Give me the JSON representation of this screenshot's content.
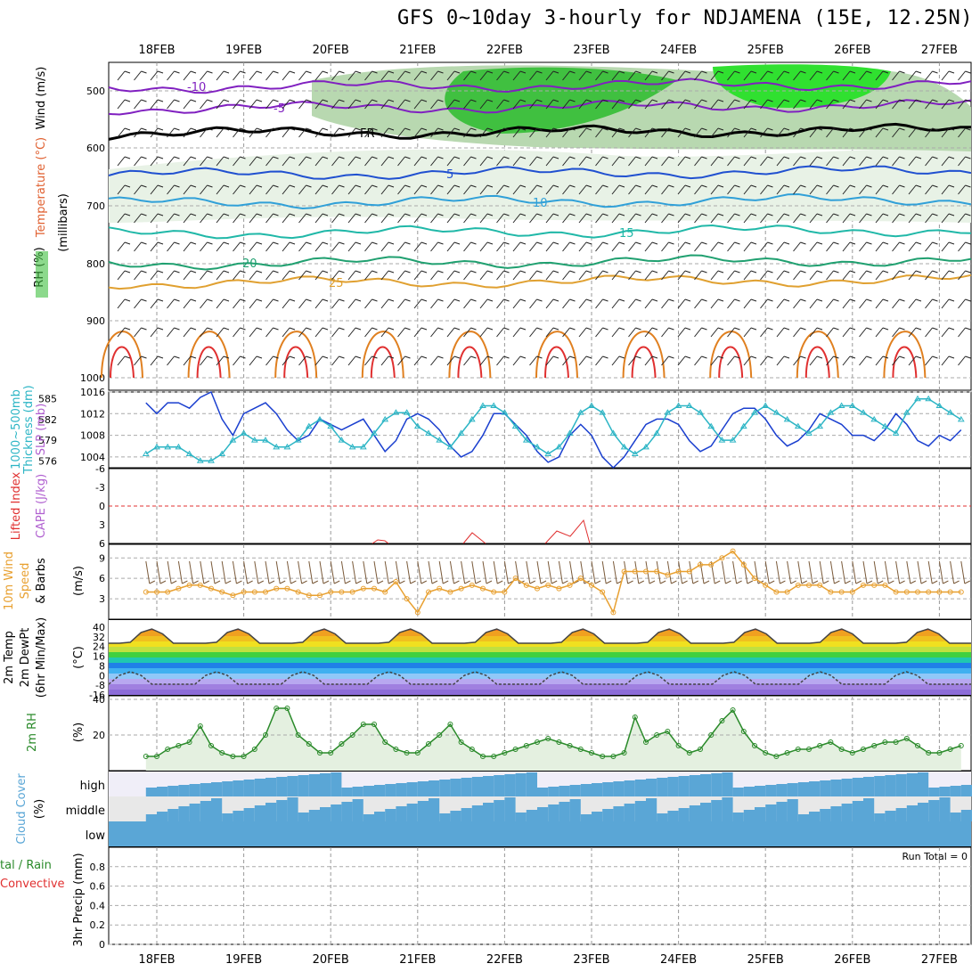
{
  "title": "GFS 0~10day 3-hourly for NDJAMENA (15E, 12.25N)",
  "dates": [
    "18FEB",
    "19FEB",
    "20FEB",
    "21FEB",
    "22FEB",
    "23FEB",
    "24FEB",
    "25FEB",
    "26FEB",
    "27FEB"
  ],
  "colors": {
    "slp": "#1a3fcf",
    "thickness": "#2cb5c5",
    "lifted": "#e03030",
    "cape": "#b060d0",
    "wind": "#e8a030",
    "barb": "#7a5a3a",
    "rh": "#2a8a2a",
    "cloud": "#5aa6d6",
    "cloud_bg": "#f0eef8",
    "cloud_mid_bg": "#e8e8e8",
    "temp_line": "#444444"
  },
  "panels": {
    "upper": {
      "ylabel_rh": "RH (%)",
      "ylabel_temp": "Temperature (°C)",
      "ylabel_wind": "Wind (m/s)",
      "ylabel_mb": "(millibars)",
      "yticks": [
        "500",
        "600",
        "700",
        "800",
        "900",
        "1000"
      ],
      "isotherm_labels": [
        "-10",
        "-5",
        "FR",
        "5",
        "10",
        "15",
        "20",
        "25"
      ]
    },
    "slp": {
      "ylabel_thick": "Thickness (dm)",
      "ylabel_thick_pre": "1000~500mb",
      "ylabel_slp": "SLP (mb)",
      "ticks_left": [
        "585",
        "582",
        "579",
        "576"
      ],
      "ticks_right": [
        "1016",
        "1012",
        "1008",
        "1004"
      ]
    },
    "cape": {
      "ylabel_li": "Lifted Index",
      "ylabel_cape": "CAPE (J/kg)",
      "ticks": [
        "-6",
        "-3",
        "0",
        "3",
        "6"
      ]
    },
    "wind": {
      "ylabel_a": "10m Wind",
      "ylabel_b": "Speed",
      "ylabel_c": "& Barbs",
      "unit": "(m/s)",
      "ticks": [
        "9",
        "6",
        "3"
      ]
    },
    "temp": {
      "ylabel_a": "2m Temp",
      "ylabel_b": "2m DewPt",
      "ylabel_c": "(6hr Min/Max)",
      "unit": "(°C)",
      "ticks": [
        "40",
        "32",
        "24",
        "16",
        "8",
        "0",
        "-8",
        "-16"
      ]
    },
    "rh": {
      "ylabel": "2m RH",
      "unit": "(%)",
      "ticks": [
        "40",
        "20"
      ]
    },
    "cloud": {
      "ylabel": "Cloud Cover",
      "unit": "(%)",
      "levels": [
        "high",
        "middle",
        "low"
      ]
    },
    "precip": {
      "ylabel_a": "tal / Rain",
      "ylabel_b": "Convective",
      "ylabel_c": "3hr Precip (mm)",
      "ticks": [
        "0.8",
        "0.6",
        "0.4",
        "0.2",
        "0"
      ],
      "run_total": "Run Total = 0"
    }
  },
  "chart_data": [
    {
      "type": "line",
      "name": "SLP (mb)",
      "x": [
        "17FEB21",
        "18FEB00",
        "18FEB03",
        "18FEB06",
        "18FEB09",
        "18FEB12",
        "18FEB15",
        "18FEB18",
        "18FEB21",
        "19FEB00",
        "19FEB03",
        "19FEB06",
        "19FEB09",
        "19FEB12",
        "19FEB15",
        "19FEB18",
        "19FEB21",
        "20FEB00",
        "20FEB03",
        "20FEB06",
        "20FEB09",
        "20FEB12",
        "20FEB15",
        "20FEB18",
        "20FEB21",
        "21FEB00",
        "21FEB03",
        "21FEB06",
        "21FEB09",
        "21FEB12",
        "21FEB15",
        "21FEB18",
        "21FEB21",
        "22FEB00",
        "22FEB03",
        "22FEB06",
        "22FEB09",
        "22FEB12",
        "22FEB15",
        "22FEB18",
        "22FEB21",
        "23FEB00",
        "23FEB03",
        "23FEB06",
        "23FEB09",
        "23FEB12",
        "23FEB15",
        "23FEB18",
        "23FEB21",
        "24FEB00",
        "24FEB03",
        "24FEB06",
        "24FEB09",
        "24FEB12",
        "24FEB15",
        "24FEB18",
        "24FEB21",
        "25FEB00",
        "25FEB03",
        "25FEB06",
        "25FEB09",
        "25FEB12",
        "25FEB15",
        "25FEB18",
        "25FEB21",
        "26FEB00",
        "26FEB03",
        "26FEB06",
        "26FEB09",
        "26FEB12",
        "26FEB15",
        "26FEB18",
        "26FEB21",
        "27FEB00",
        "27FEB03",
        "27FEB06"
      ],
      "values": [
        1014,
        1012,
        1014,
        1014,
        1013,
        1015,
        1016,
        1011,
        1008,
        1012,
        1013,
        1014,
        1012,
        1009,
        1007,
        1008,
        1011,
        1010,
        1009,
        1010,
        1011,
        1008,
        1005,
        1007,
        1011,
        1012,
        1011,
        1009,
        1006,
        1004,
        1005,
        1008,
        1012,
        1012,
        1010,
        1008,
        1005,
        1003,
        1004,
        1008,
        1010,
        1008,
        1004,
        1002,
        1004,
        1007,
        1010,
        1011,
        1011,
        1010,
        1007,
        1005,
        1006,
        1009,
        1012,
        1013,
        1013,
        1011,
        1008,
        1006,
        1007,
        1009,
        1012,
        1011,
        1010,
        1008,
        1008,
        1007,
        1009,
        1012,
        1010,
        1007,
        1006,
        1008,
        1007,
        1009
      ],
      "ylim": [
        1002,
        1016
      ]
    },
    {
      "type": "line",
      "name": "Thickness (dm)",
      "values": [
        577,
        578,
        578,
        578,
        577,
        576,
        576,
        577,
        579,
        580,
        579,
        579,
        578,
        578,
        579,
        581,
        582,
        581,
        579,
        578,
        578,
        580,
        582,
        583,
        583,
        581,
        580,
        579,
        578,
        580,
        582,
        584,
        584,
        583,
        581,
        579,
        578,
        577,
        578,
        580,
        583,
        584,
        583,
        580,
        578,
        577,
        578,
        580,
        583,
        584,
        584,
        583,
        581,
        579,
        579,
        581,
        583,
        584,
        583,
        582,
        581,
        580,
        581,
        583,
        584,
        584,
        583,
        582,
        581,
        580,
        583,
        585,
        585,
        584,
        583,
        582
      ],
      "ylim": [
        575,
        586
      ]
    },
    {
      "type": "line",
      "name": "10m Wind Speed (m/s)",
      "values": [
        4,
        4,
        4,
        4.5,
        5,
        5,
        4.5,
        4,
        3.5,
        4,
        4,
        4,
        4.5,
        4.5,
        4,
        3.5,
        3.5,
        4,
        4,
        4,
        4.5,
        4.5,
        4,
        5.5,
        3,
        1,
        4,
        4.5,
        4,
        4.5,
        5,
        4.5,
        4,
        4,
        6,
        5,
        4.5,
        5,
        4.5,
        5,
        6,
        5,
        4,
        1,
        7,
        7,
        7,
        7,
        6.5,
        7,
        7,
        8,
        8,
        9,
        10,
        8,
        6,
        5,
        4,
        4,
        5,
        5,
        5,
        4,
        4,
        4,
        5,
        5,
        5,
        4,
        4,
        4,
        4,
        4,
        4,
        4
      ],
      "ylim": [
        0,
        11
      ]
    },
    {
      "type": "line",
      "name": "2m RH (%)",
      "values": [
        8,
        8,
        12,
        14,
        16,
        25,
        14,
        10,
        8,
        8,
        12,
        20,
        35,
        35,
        20,
        15,
        10,
        10,
        15,
        20,
        26,
        26,
        16,
        12,
        10,
        10,
        15,
        20,
        26,
        16,
        12,
        8,
        8,
        10,
        12,
        14,
        16,
        18,
        16,
        14,
        12,
        10,
        8,
        8,
        10,
        30,
        16,
        20,
        22,
        14,
        10,
        12,
        20,
        28,
        34,
        22,
        14,
        10,
        8,
        10,
        12,
        12,
        14,
        16,
        12,
        10,
        12,
        14,
        16,
        16,
        18,
        14,
        10,
        10,
        12,
        14
      ],
      "ylim": [
        0,
        42
      ]
    }
  ]
}
